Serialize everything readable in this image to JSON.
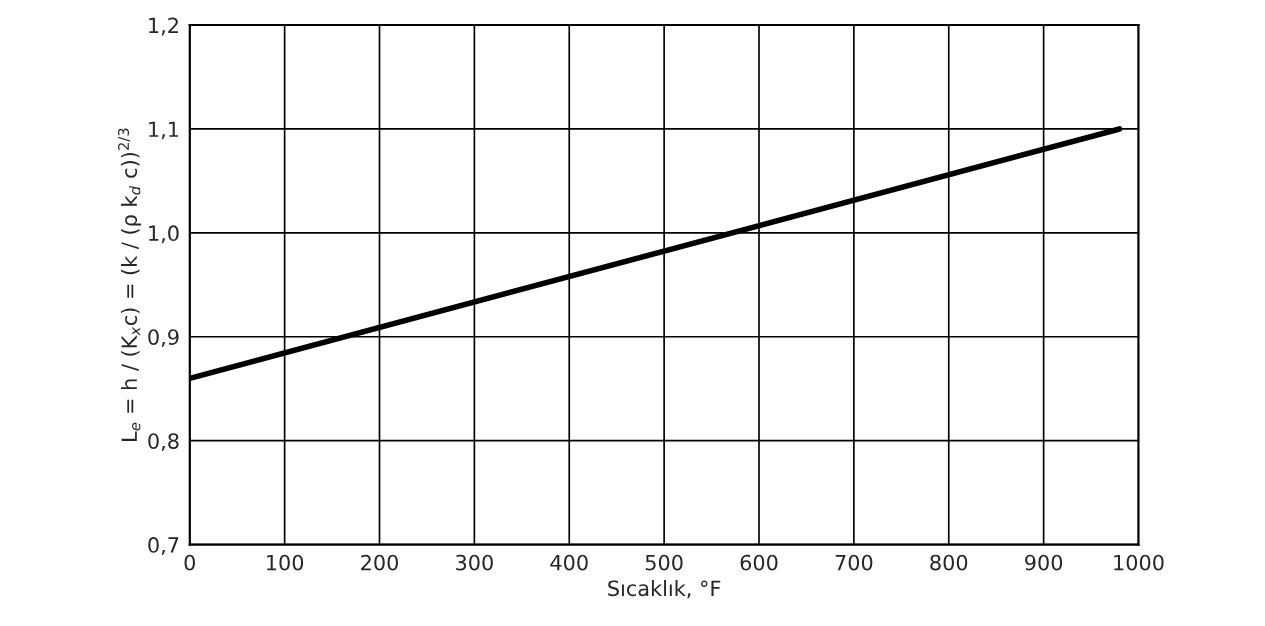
{
  "chart_data": {
    "type": "line",
    "xlabel": "Sıcaklık, °F",
    "ylabel": "L$_{e}$ = h / (K$_{x}$c) = (k / (ρ k$_{d}$ c))$^{2/3}$",
    "x": [
      0,
      980
    ],
    "series": [
      {
        "color": "#000000",
        "values": [
          0.86,
          1.1
        ]
      }
    ],
    "xlim": [
      0,
      1000
    ],
    "xticks": [
      0,
      100,
      200,
      300,
      400,
      500,
      600,
      700,
      800,
      900,
      1000
    ],
    "ylim": [
      0.7,
      1.2
    ],
    "yticks": [
      {
        "value": 0.7,
        "label": "0,7"
      },
      {
        "value": 0.8,
        "label": "0,8"
      },
      {
        "value": 0.9,
        "label": "0,9"
      },
      {
        "value": 1.0,
        "label": "1,0"
      },
      {
        "value": 1.1,
        "label": "1,1"
      },
      {
        "value": 1.2,
        "label": "1,2"
      }
    ],
    "grid": true,
    "marker": "none",
    "line_style": "solid"
  }
}
